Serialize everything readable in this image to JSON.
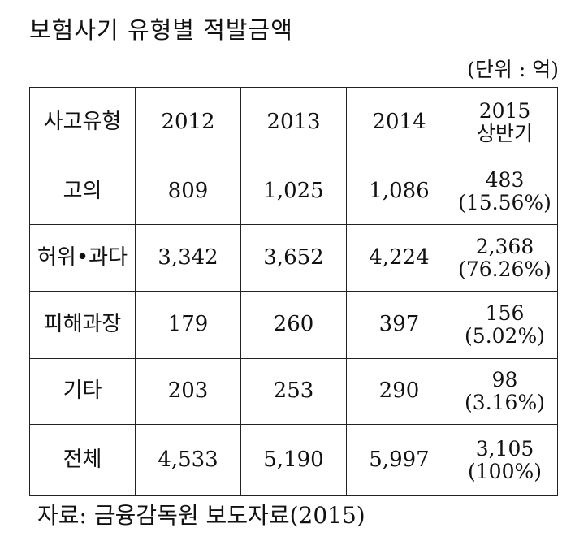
{
  "title": "보험사기 유형별 적발금액",
  "unit": "(단위 : 억)",
  "table": {
    "header": {
      "type": "사고유형",
      "y2012": "2012",
      "y2013": "2013",
      "y2014": "2014",
      "h2015_line1": "2015",
      "h2015_line2": "상반기"
    },
    "rows": [
      {
        "type": "고의",
        "y2012": "809",
        "y2013": "1,025",
        "y2014": "1,086",
        "h2015_value": "483",
        "h2015_share": "(15.56%)"
      },
      {
        "type": "허위•과다",
        "y2012": "3,342",
        "y2013": "3,652",
        "y2014": "4,224",
        "h2015_value": "2,368",
        "h2015_share": "(76.26%)"
      },
      {
        "type": "피해과장",
        "y2012": "179",
        "y2013": "260",
        "y2014": "397",
        "h2015_value": "156",
        "h2015_share": "(5.02%)"
      },
      {
        "type": "기타",
        "y2012": "203",
        "y2013": "253",
        "y2014": "290",
        "h2015_value": "98",
        "h2015_share": "(3.16%)"
      },
      {
        "type": "전체",
        "y2012": "4,533",
        "y2013": "5,190",
        "y2014": "5,997",
        "h2015_value": "3,105",
        "h2015_share": "(100%)"
      }
    ]
  },
  "source": "자료: 금융감독원 보도자료(2015)"
}
